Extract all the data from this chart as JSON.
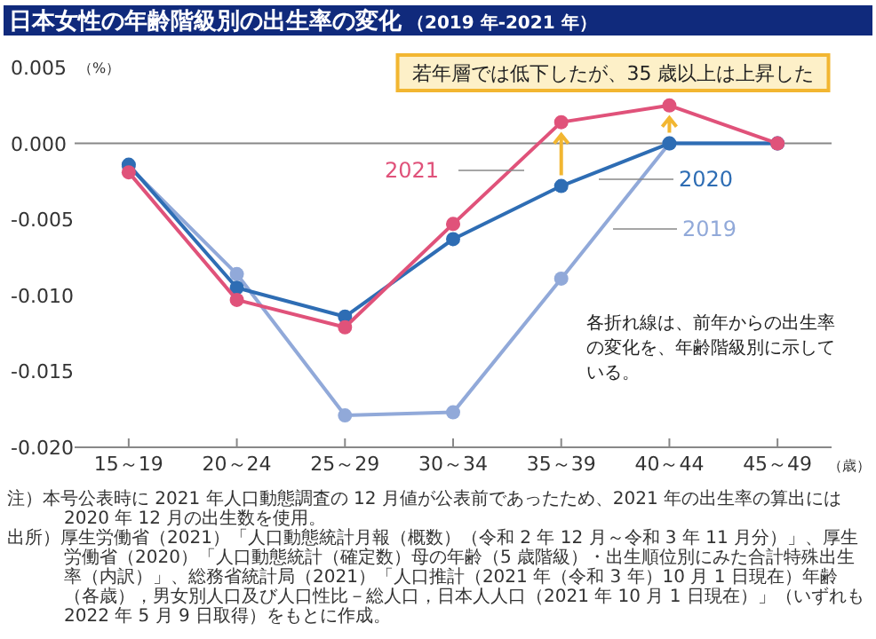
{
  "chart_data": {
    "type": "line",
    "title": "日本女性の年齢階級別の出生率の変化",
    "subtitle": "（2019 年-2021 年）",
    "xlabel": "（歳）",
    "ylabel": "（%）",
    "categories": [
      "15～19",
      "20～24",
      "25～29",
      "30～34",
      "35～39",
      "40～44",
      "45～49"
    ],
    "series": [
      {
        "name": "2021",
        "color": "#e0527a",
        "values": [
          -0.0019,
          -0.0103,
          -0.0121,
          -0.0053,
          0.0014,
          0.0025,
          0
        ]
      },
      {
        "name": "2020",
        "color": "#2e6db4",
        "values": [
          -0.0014,
          -0.0095,
          -0.0114,
          -0.0063,
          -0.0028,
          0,
          0
        ]
      },
      {
        "name": "2019",
        "color": "#91a9d9",
        "values": [
          -0.0015,
          -0.0086,
          -0.0179,
          -0.0177,
          -0.0089,
          0,
          0
        ]
      }
    ],
    "ylim": [
      -0.02,
      0.005
    ],
    "yticks": [
      {
        "value": -0.02,
        "label": "-0.020"
      },
      {
        "value": -0.015,
        "label": "-0.015"
      },
      {
        "value": -0.01,
        "label": "-0.010"
      },
      {
        "value": -0.005,
        "label": "-0.005"
      },
      {
        "value": 0,
        "label": "0.000"
      },
      {
        "value": 0.005,
        "label": "0.005"
      }
    ],
    "ref_lines": [
      {
        "axis": "y",
        "value": 0,
        "color": "#888888"
      }
    ],
    "marker": "circle",
    "annotations": [
      "若年層では低下したが、35 歳以上は上昇した",
      "各折れ線は、前年からの出生率の変化を、年齢階級別に示している。",
      "注）本号公表時に 2021 年人口動態調査の 12 月値が公表前であったため、2021 年の出生率の算出には 2020 年 12 月の出生数を使用。",
      "出所）厚生労働省（2021）「人口動態統計月報（概数）（令和 2 年 12 月～令和 3 年 11 月分）」、厚生労働省（2020）「人口動態統計（確定数）母の年齢（5 歳階級）・出生順位別にみた合計特殊出生率（内訳）」、総務省統計局（2021）「人口推計（2021 年（令和 3 年）10 月 1 日現在）年齢（各歳），男女別人口及び人口性比－総人口，日本人人口（2021 年 10 月 1 日現在）」（いずれも 2022 年 5 月 9 日取得）をもとに作成。"
    ]
  }
}
